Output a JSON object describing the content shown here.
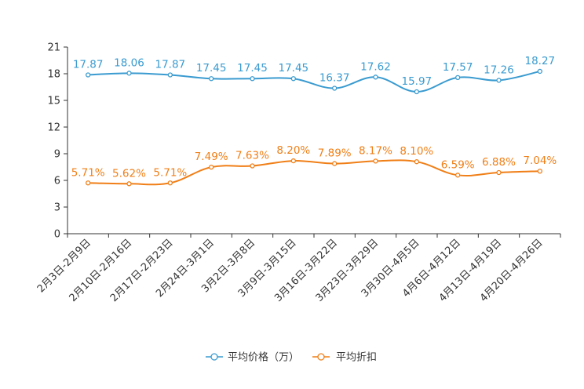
{
  "chart_data": {
    "type": "line",
    "title": "",
    "xlabel": "",
    "ylabel": "",
    "ylim": [
      0,
      21
    ],
    "yticks": [
      0,
      3,
      6,
      9,
      12,
      15,
      18,
      21
    ],
    "grid": false,
    "legend_position": "bottom-center",
    "categories": [
      "2月3日-2月9日",
      "2月10日-2月16日",
      "2月17日-2月23日",
      "2月24日-3月1日",
      "3月2日-3月8日",
      "3月9日-3月15日",
      "3月16日-3月22日",
      "3月23日-3月29日",
      "3月30日-4月5日",
      "4月6日-4月12日",
      "4月13日-4月19日",
      "4月20日-4月26日"
    ],
    "series": [
      {
        "name": "平均价格（万）",
        "color": "#3a9bd0",
        "values": [
          17.87,
          18.06,
          17.87,
          17.45,
          17.45,
          17.45,
          16.37,
          17.62,
          15.97,
          17.57,
          17.26,
          18.27
        ],
        "labels": [
          "17.87",
          "18.06",
          "17.87",
          "17.45",
          "17.45",
          "17.45",
          "16.37",
          "17.62",
          "15.97",
          "17.57",
          "17.26",
          "18.27"
        ]
      },
      {
        "name": "平均折扣",
        "color": "#f07f17",
        "values": [
          5.71,
          5.62,
          5.71,
          7.49,
          7.63,
          8.2,
          7.89,
          8.17,
          8.1,
          6.59,
          6.88,
          7.04
        ],
        "labels": [
          "5.71%",
          "5.62%",
          "5.71%",
          "7.49%",
          "7.63%",
          "8.20%",
          "7.89%",
          "8.17%",
          "8.10%",
          "6.59%",
          "6.88%",
          "7.04%"
        ]
      }
    ]
  }
}
